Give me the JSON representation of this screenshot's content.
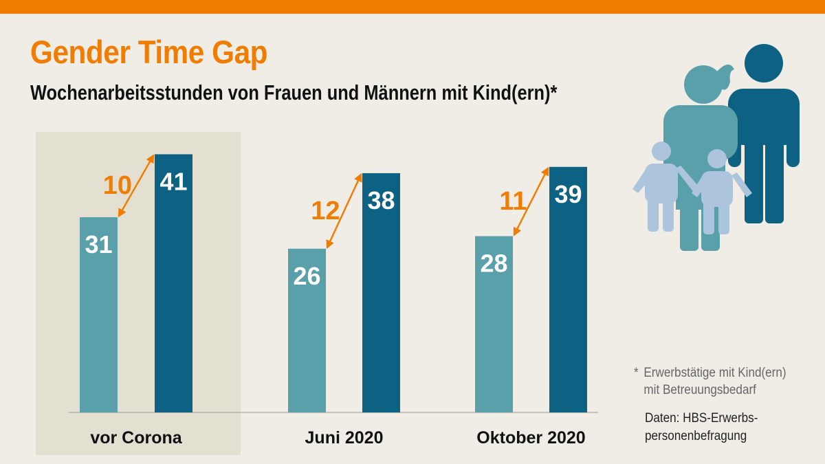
{
  "title": "Gender Time Gap",
  "subtitle": "Wochenarbeitsstunden von Frauen und Männern mit Kind(ern)*",
  "colors": {
    "accent": "#f07d00",
    "women": "#5aa0aa",
    "men": "#0d6283",
    "highlight": "#e3e0d1",
    "background": "#efede6",
    "child": "#adc5dc"
  },
  "footnote": {
    "marker": "*",
    "line1": "Erwerbstätige mit Kind(ern)",
    "line2": "mit Betreuungsbedarf"
  },
  "source": {
    "line1": "Daten: HBS-Erwerbs-",
    "line2": "personenbefragung"
  },
  "illustration_icon": "family-icon",
  "chart_data": {
    "type": "bar",
    "categories": [
      "vor Corona",
      "Juni 2020",
      "Oktober 2020"
    ],
    "highlight_category": "vor Corona",
    "series": [
      {
        "values": [
          31,
          26,
          28
        ]
      },
      {
        "values": [
          41,
          38,
          39
        ]
      }
    ],
    "gaps": [
      10,
      12,
      11
    ],
    "ylim": [
      0,
      45
    ],
    "grid": false,
    "legend": "none"
  }
}
